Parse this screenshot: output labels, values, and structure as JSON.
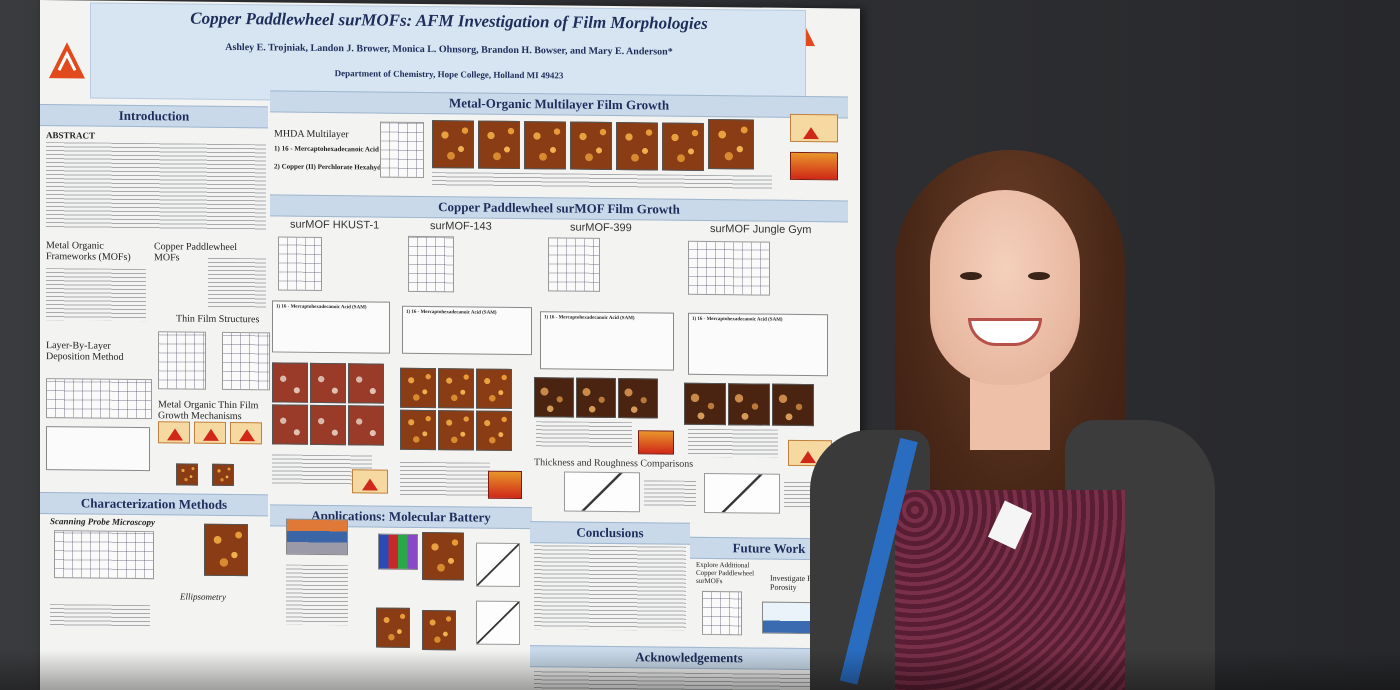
{
  "poster": {
    "title": "Copper Paddlewheel surMOFs: AFM Investigation of Film Morphologies",
    "authors": "Ashley E. Trojniak, Landon J. Brower, Monica L. Ohnsorg, Brandon H. Bowser, and Mary E. Anderson*",
    "department": "Department of Chemistry, Hope College, Holland MI 49423",
    "sections": {
      "introduction": "Introduction",
      "abstract": "ABSTRACT",
      "multilayer": "Metal-Organic Multilayer Film Growth",
      "mhda": "MHDA Multilayer",
      "surmof_growth": "Copper Paddlewheel surMOF Film Growth",
      "metal_organic_frameworks": "Metal Organic Frameworks (MOFs)",
      "copper_paddlewheel_mofs": "Copper Paddlewheel MOFs",
      "thin_film_structures": "Thin Film Structures",
      "layer_by_layer": "Layer-By-Layer Deposition Method",
      "growth_mechanisms": "Metal Organic Thin Film Growth Mechanisms",
      "characterization": "Characterization Methods",
      "spm": "Scanning Probe Microscopy",
      "ellipsometry": "Ellipsometry",
      "thickness": "Thickness and Roughness Comparisons",
      "applications": "Applications: Molecular Battery",
      "conclusions": "Conclusions",
      "future_work": "Future Work",
      "acknowledgements": "Acknowledgements"
    },
    "columns": [
      "surMOF HKUST-1",
      "surMOF-143",
      "surMOF-399",
      "surMOF Jungle Gym"
    ],
    "mhda_steps": [
      "1) 16 - Mercaptohexadecanoic Acid",
      "2) Copper (II) Perchlorate Hexahydrate"
    ],
    "recipe_first_lines": [
      "1) 16 - Mercaptohexadecanoic Acid (SAM)",
      "1) 16 - Mercaptohexadecanoic Acid (SAM)",
      "1) 16 - Mercaptohexadecanoic Acid (SAM)",
      "1) 16 - Mercaptohexadecanoic Acid (SAM)"
    ],
    "future_items": [
      "Explore Additional Copper Paddlewheel surMOFs",
      "Investigate Film Porosity"
    ]
  },
  "colors": {
    "wall": "#2e2f32",
    "poster_bg": "#f3f3f1",
    "header_bg": "#d7e4f1",
    "section_bar": "#c9d9ea",
    "title_text": "#1e2d5a",
    "lanyard": "#2a6cc0"
  },
  "logos": [
    "hope-college-logo-left",
    "hope-college-logo-right"
  ]
}
